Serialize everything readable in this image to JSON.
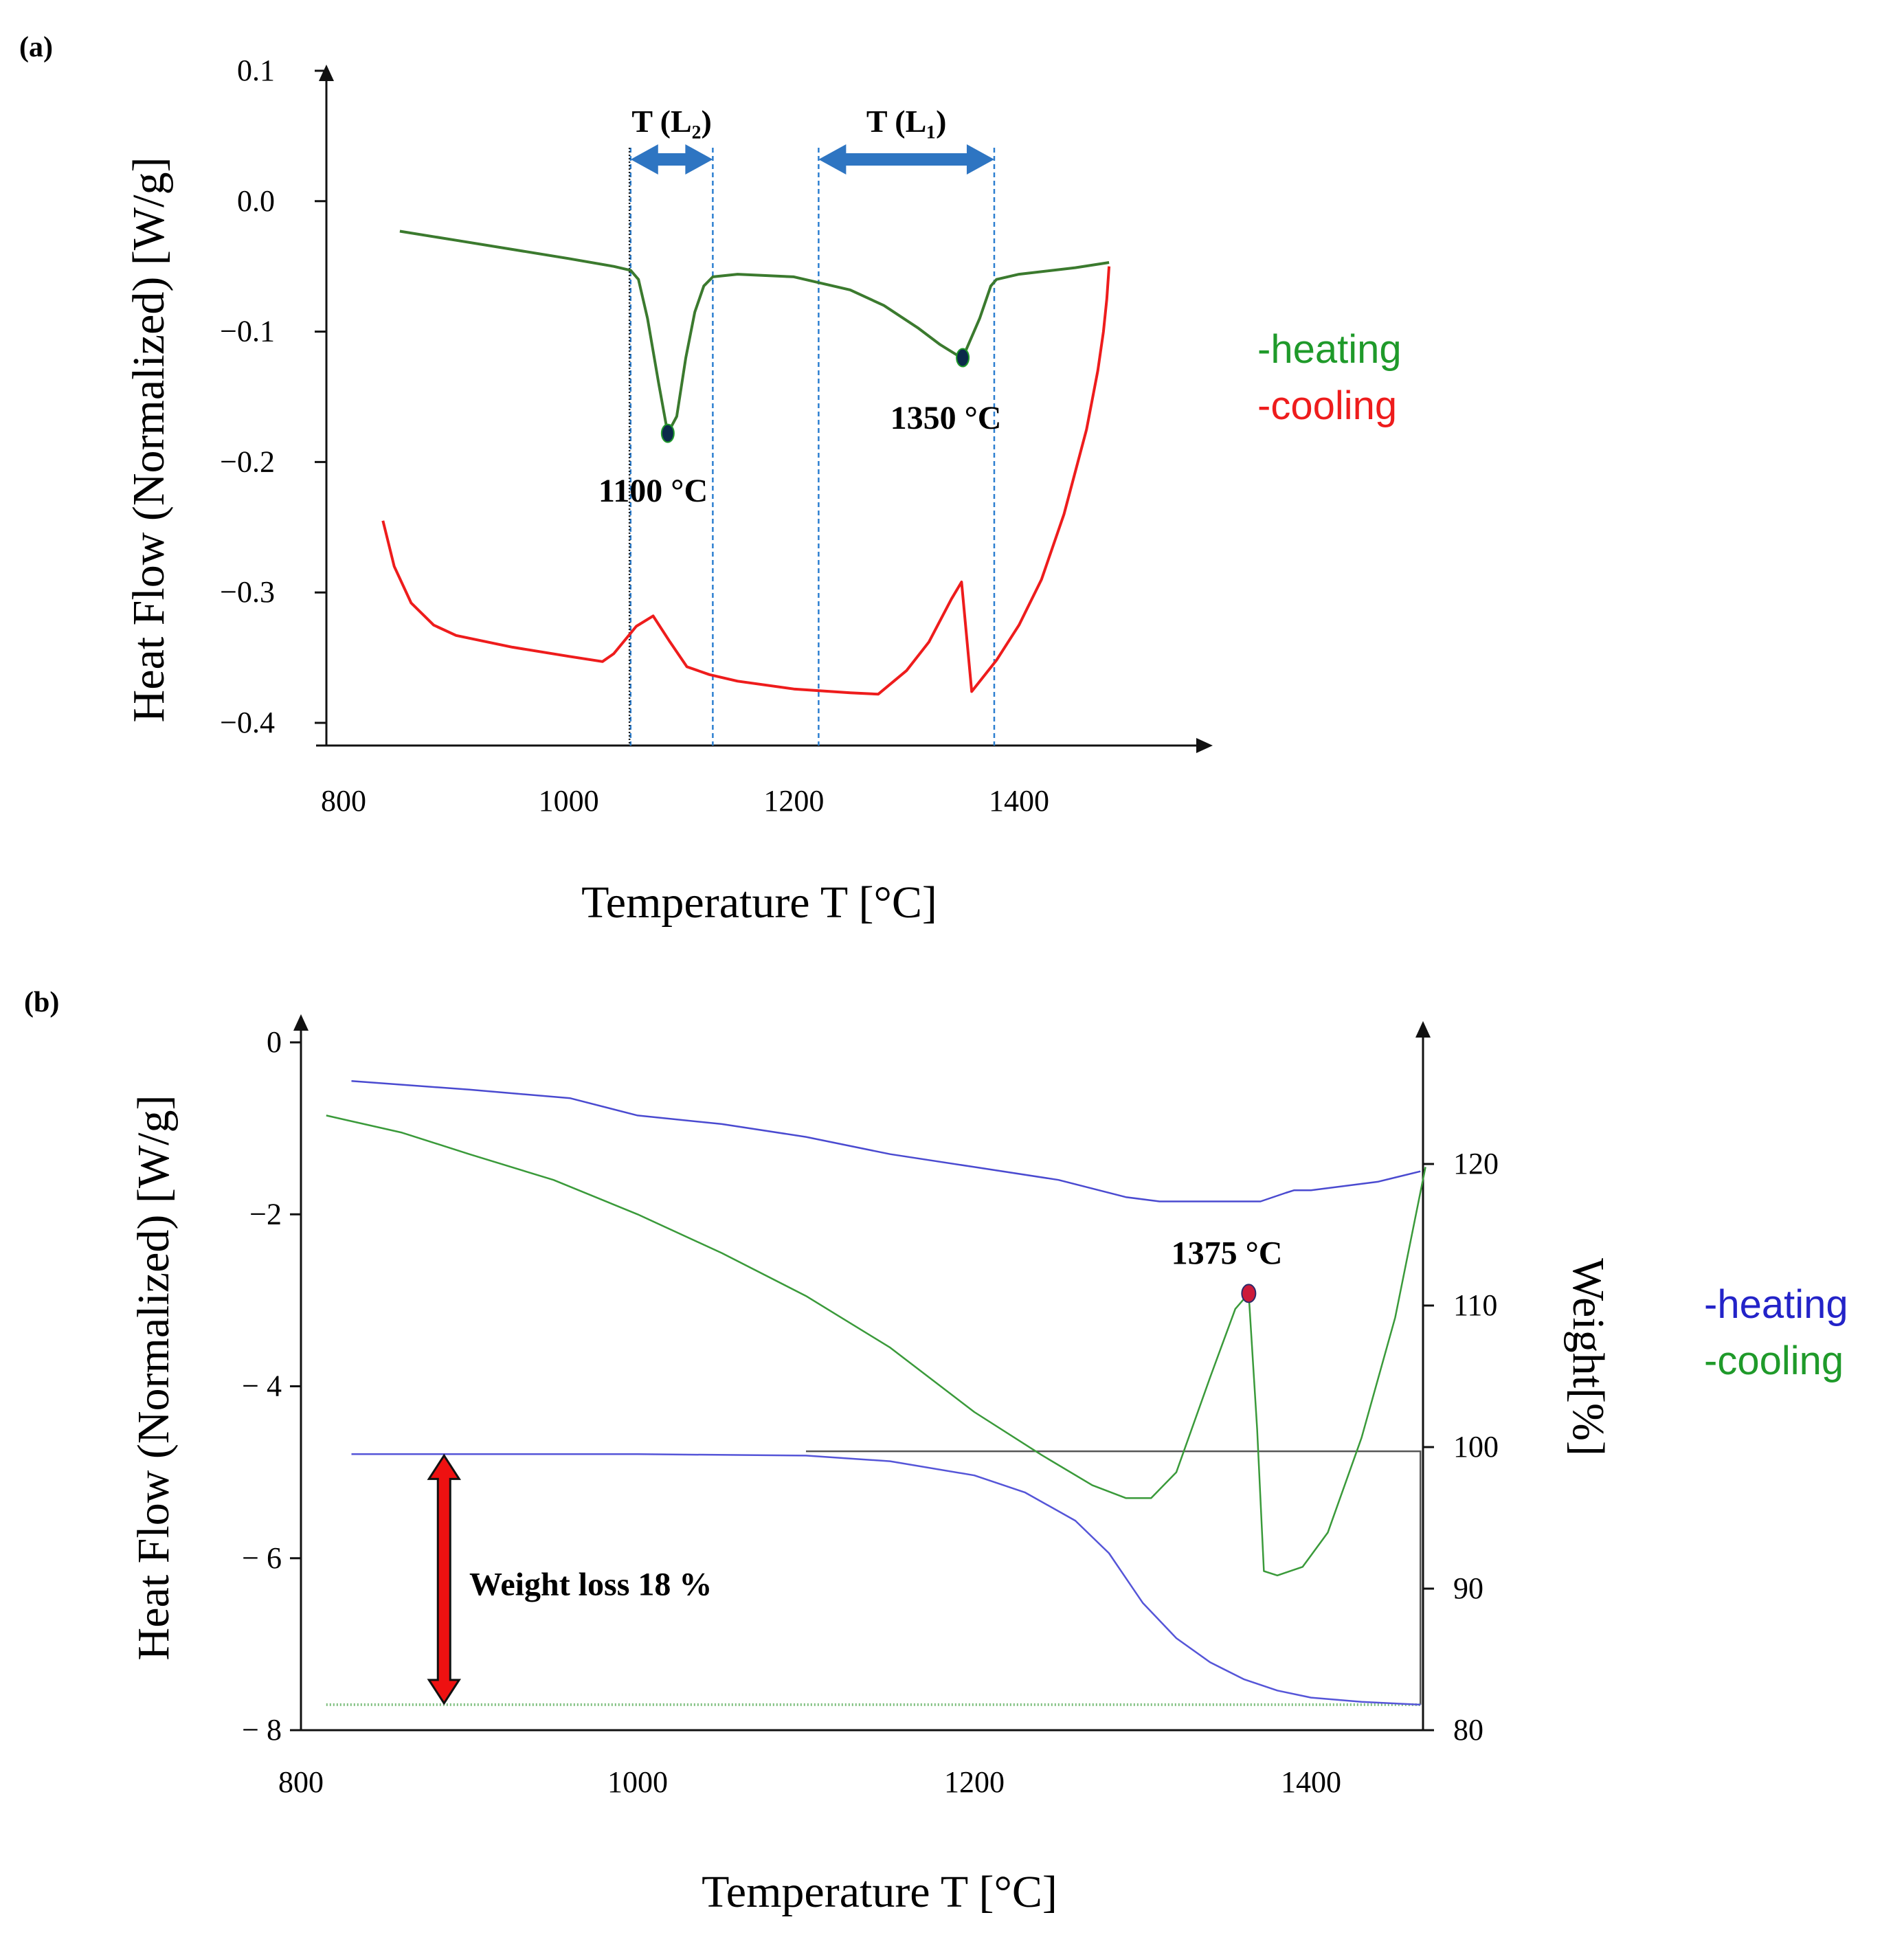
{
  "chart_data": [
    {
      "type": "line",
      "panel_label": "(a)",
      "title": "",
      "xlabel": "Temperature T [°C]",
      "ylabel": "Heat Flow (Normalized) [W/g]",
      "xlim": [
        800,
        1550
      ],
      "ylim": [
        -0.4,
        0.1
      ],
      "x_ticks": [
        {
          "v": 800,
          "label": "800"
        },
        {
          "v": 1000,
          "label": "1000"
        },
        {
          "v": 1200,
          "label": "1200"
        },
        {
          "v": 1400,
          "label": "1400"
        }
      ],
      "y_ticks": [
        {
          "v": 0.1,
          "label": "0.1"
        },
        {
          "v": 0.0,
          "label": "0.0"
        },
        {
          "v": -0.1,
          "label": "−0.1"
        },
        {
          "v": -0.2,
          "label": "−0.2"
        },
        {
          "v": -0.3,
          "label": "−0.3"
        },
        {
          "v": -0.4,
          "label": "−0.4"
        }
      ],
      "grid": false,
      "legend": [
        {
          "label": "-heating",
          "color": "#1f9a2a"
        },
        {
          "label": "-cooling",
          "color": "#ee1c1c"
        }
      ],
      "legend_position": "right",
      "series": [
        {
          "name": "heating",
          "color": "#3b7a2e",
          "x": [
            850,
            900,
            950,
            1000,
            1040,
            1055,
            1062,
            1070,
            1080,
            1088,
            1096,
            1104,
            1112,
            1120,
            1128,
            1150,
            1200,
            1250,
            1280,
            1310,
            1330,
            1345,
            1350,
            1355,
            1365,
            1375,
            1380,
            1400,
            1450,
            1480
          ],
          "y": [
            -0.023,
            -0.03,
            -0.037,
            -0.044,
            -0.05,
            -0.053,
            -0.06,
            -0.09,
            -0.14,
            -0.178,
            -0.165,
            -0.12,
            -0.085,
            -0.065,
            -0.058,
            -0.056,
            -0.058,
            -0.068,
            -0.08,
            -0.097,
            -0.11,
            -0.118,
            -0.12,
            -0.11,
            -0.09,
            -0.065,
            -0.06,
            -0.056,
            -0.051,
            -0.047
          ]
        },
        {
          "name": "cooling",
          "color": "#ee1c1c",
          "x": [
            835,
            845,
            860,
            880,
            900,
            950,
            1000,
            1030,
            1040,
            1060,
            1075,
            1090,
            1105,
            1125,
            1150,
            1200,
            1250,
            1275,
            1300,
            1320,
            1340,
            1349,
            1358,
            1380,
            1400,
            1420,
            1440,
            1460,
            1470,
            1475,
            1478,
            1480
          ],
          "y": [
            -0.245,
            -0.28,
            -0.308,
            -0.325,
            -0.333,
            -0.342,
            -0.349,
            -0.353,
            -0.347,
            -0.326,
            -0.318,
            -0.338,
            -0.357,
            -0.363,
            -0.368,
            -0.374,
            -0.377,
            -0.378,
            -0.36,
            -0.338,
            -0.305,
            -0.292,
            -0.376,
            -0.352,
            -0.325,
            -0.29,
            -0.24,
            -0.175,
            -0.13,
            -0.1,
            -0.075,
            -0.05
          ]
        }
      ],
      "markers": [
        {
          "x": 1088,
          "y": -0.178,
          "color": "#0b2a4a"
        },
        {
          "x": 1350,
          "y": -0.12,
          "color": "#0b2a4a"
        }
      ],
      "vlines": [
        {
          "x": 1055,
          "color": "#2d7fd0",
          "style": "dashed"
        },
        {
          "x": 1128,
          "color": "#2d7fd0",
          "style": "dashed"
        },
        {
          "x": 1222,
          "color": "#2d7fd0",
          "style": "dashed"
        },
        {
          "x": 1378,
          "color": "#2d7fd0",
          "style": "dashed"
        },
        {
          "x": 1054,
          "color": "#1a1a1a",
          "style": "dotted"
        }
      ],
      "range_arrows": [
        {
          "x0": 1055,
          "x1": 1128,
          "label": "T (L₂)"
        },
        {
          "x0": 1222,
          "x1": 1378,
          "label": "T (L₁)"
        }
      ],
      "annotations": [
        {
          "text": "1100 °C",
          "x": 1075,
          "y": -0.222
        },
        {
          "text": "1350 °C",
          "x": 1335,
          "y": -0.166
        }
      ]
    },
    {
      "type": "line",
      "panel_label": "(b)",
      "title": "",
      "xlabel": "Temperature T [°C]",
      "ylabel": "Heat Flow (Normalized) [W/g]",
      "y2label": "Weight[%]",
      "xlim": [
        800,
        1480
      ],
      "ylim": [
        -8,
        0.2
      ],
      "y2lim": [
        80,
        128
      ],
      "x_ticks": [
        {
          "v": 800,
          "label": "800"
        },
        {
          "v": 1000,
          "label": "1000"
        },
        {
          "v": 1200,
          "label": "1200"
        },
        {
          "v": 1400,
          "label": "1400"
        }
      ],
      "y_ticks": [
        {
          "v": 0,
          "label": "0"
        },
        {
          "v": -2,
          "label": "−2"
        },
        {
          "v": -4,
          "label": "− 4"
        },
        {
          "v": -6,
          "label": "− 6"
        },
        {
          "v": -8,
          "label": "− 8"
        }
      ],
      "y2_ticks": [
        {
          "v": 120,
          "label": "120"
        },
        {
          "v": 110,
          "label": "110"
        },
        {
          "v": 100,
          "label": "100"
        },
        {
          "v": 90,
          "label": "90"
        },
        {
          "v": 80,
          "label": "80"
        }
      ],
      "grid": false,
      "legend": [
        {
          "label": "-heating",
          "color": "#2323c8"
        },
        {
          "label": "-cooling",
          "color": "#1f9a2a"
        }
      ],
      "legend_position": "right",
      "series": [
        {
          "name": "heating",
          "axis": "left",
          "color": "#4a4ad0",
          "x": [
            830,
            900,
            960,
            1000,
            1050,
            1100,
            1150,
            1200,
            1250,
            1290,
            1310,
            1340,
            1370,
            1385,
            1390,
            1400,
            1440,
            1465
          ],
          "y": [
            -0.45,
            -0.55,
            -0.65,
            -0.85,
            -0.95,
            -1.1,
            -1.3,
            -1.45,
            -1.6,
            -1.8,
            -1.85,
            -1.85,
            -1.85,
            -1.75,
            -1.72,
            -1.72,
            -1.62,
            -1.5
          ]
        },
        {
          "name": "cooling",
          "axis": "left",
          "color": "#3a9a3a",
          "x": [
            815,
            860,
            900,
            950,
            1000,
            1050,
            1100,
            1150,
            1200,
            1240,
            1270,
            1290,
            1305,
            1320,
            1340,
            1355,
            1363,
            1368,
            1372,
            1380,
            1395,
            1410,
            1430,
            1450,
            1468
          ],
          "y": [
            -0.85,
            -1.05,
            -1.3,
            -1.6,
            -2.0,
            -2.45,
            -2.95,
            -3.55,
            -4.3,
            -4.8,
            -5.15,
            -5.3,
            -5.3,
            -5.0,
            -3.9,
            -3.1,
            -2.92,
            -4.5,
            -6.15,
            -6.2,
            -6.1,
            -5.7,
            -4.6,
            -3.2,
            -1.45
          ]
        },
        {
          "name": "weight",
          "axis": "right",
          "color": "#5555d8",
          "x": [
            830,
            900,
            1000,
            1100,
            1150,
            1200,
            1230,
            1260,
            1280,
            1300,
            1320,
            1340,
            1360,
            1380,
            1400,
            1430,
            1465
          ],
          "y": [
            99.5,
            99.5,
            99.5,
            99.4,
            99.0,
            98.0,
            96.8,
            94.8,
            92.5,
            89.0,
            86.5,
            84.8,
            83.6,
            82.8,
            82.3,
            82.0,
            81.8
          ]
        },
        {
          "name": "baseline",
          "axis": "right",
          "color": "#7fbf7f",
          "x": [
            815,
            1465
          ],
          "y": [
            81.8,
            81.8
          ]
        }
      ],
      "weight_box": {
        "x0": 1100,
        "x1": 1465,
        "y_top": 99.7,
        "y_bottom": 81.8,
        "color": "#555555"
      },
      "markers": [
        {
          "x": 1363,
          "y": -2.92,
          "color": "#cc1a3a"
        }
      ],
      "weight_loss_arrow": {
        "x": 885,
        "y_top": 99.4,
        "y_bottom": 81.9,
        "color": "#ee1111"
      },
      "annotations": [
        {
          "text": "1375 °C",
          "x": 1350,
          "y": -2.45
        },
        {
          "text": "Weight loss 18 %",
          "x": 900,
          "y": -6.3
        }
      ]
    }
  ]
}
